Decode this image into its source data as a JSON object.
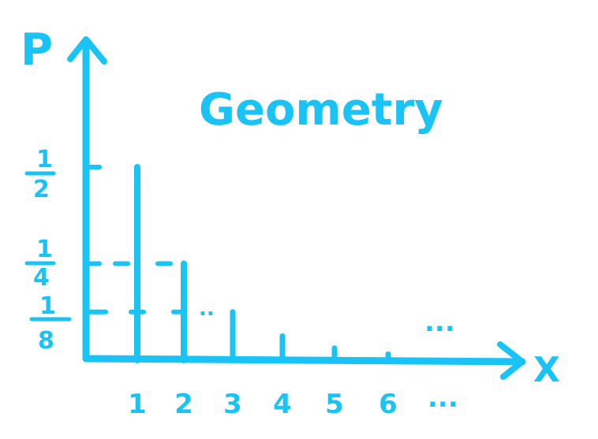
{
  "chart_data": {
    "type": "bar",
    "title": "Geometry",
    "xlabel": "X",
    "ylabel": "P",
    "categories": [
      "1",
      "2",
      "3",
      "4",
      "5",
      "6"
    ],
    "values": [
      0.5,
      0.25,
      0.125,
      0.0625,
      0.03125,
      0.015625
    ],
    "x_continuation": "...",
    "bar_continuation": "...",
    "dashed_marker": "..",
    "y_ticks": [
      {
        "value": 0.5,
        "num": "1",
        "den": "2"
      },
      {
        "value": 0.25,
        "num": "1",
        "den": "4"
      },
      {
        "value": 0.125,
        "num": "1",
        "den": "8"
      }
    ],
    "colors": {
      "ink": "#19c3f5",
      "background": "#ffffff"
    },
    "grid": false,
    "legend": "none"
  }
}
